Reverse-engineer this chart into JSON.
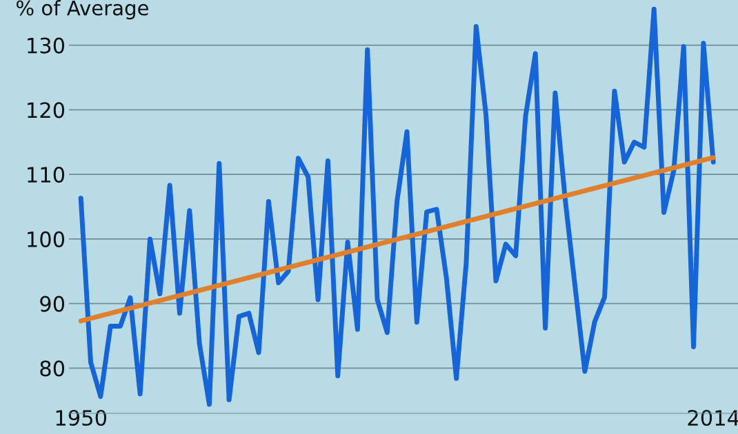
{
  "chart_data": {
    "type": "line",
    "ylabel": "% of Average",
    "x": [
      1950,
      1951,
      1952,
      1953,
      1954,
      1955,
      1956,
      1957,
      1958,
      1959,
      1960,
      1961,
      1962,
      1963,
      1964,
      1965,
      1966,
      1967,
      1968,
      1969,
      1970,
      1971,
      1972,
      1973,
      1974,
      1975,
      1976,
      1977,
      1978,
      1979,
      1980,
      1981,
      1982,
      1983,
      1984,
      1985,
      1986,
      1987,
      1988,
      1989,
      1990,
      1991,
      1992,
      1993,
      1994,
      1995,
      1996,
      1997,
      1998,
      1999,
      2000,
      2001,
      2002,
      2003,
      2004,
      2005,
      2006,
      2007,
      2008,
      2009,
      2010,
      2011,
      2012,
      2013,
      2014
    ],
    "series": [
      {
        "color": "#1565d8",
        "values": [
          106.3,
          80.9,
          75.6,
          86.5,
          86.5,
          90.9,
          76.0,
          100,
          91.5,
          108.3,
          88.5,
          104.4,
          83.8,
          74.4,
          111.7,
          75.1,
          88.0,
          88.5,
          82.4,
          105.8,
          93.2,
          95.0,
          112.5,
          109.6,
          90.6,
          112.1,
          78.8,
          99.5,
          86.0,
          129.3,
          90.6,
          85.5,
          105.9,
          116.6,
          87.1,
          104.2,
          104.6,
          93.9,
          78.4,
          96.3,
          132.9,
          119.2,
          93.5,
          99.2,
          97.4,
          119.0,
          128.7,
          86.2,
          122.6,
          106.3,
          92.8,
          79.5,
          87.2,
          91.0,
          122.9,
          111.9,
          115.0,
          114.2,
          135.6,
          104.1,
          110.6,
          129.8,
          83.3,
          130.3,
          111.9
        ]
      },
      {
        "type": "line",
        "color": "#e0802c",
        "x": [
          1950,
          2014
        ],
        "values": [
          87.3,
          112.6
        ]
      }
    ],
    "xlim": [
      1948.8,
      2016.5
    ],
    "ylim": [
      73,
      137
    ],
    "xticks": [
      1950,
      2014
    ],
    "yticks": [
      80,
      90,
      100,
      110,
      120,
      130
    ],
    "grid": "y",
    "line_style": "solid",
    "marker": "none"
  }
}
